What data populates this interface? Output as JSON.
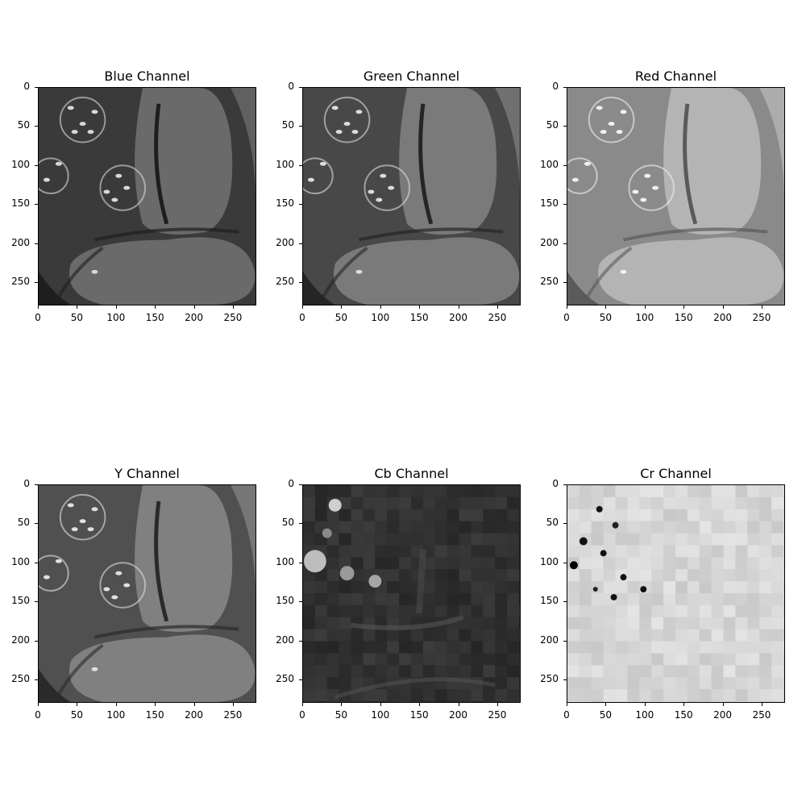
{
  "panels": [
    {
      "title": "Blue Channel",
      "image": "grayscale endoscopic image, dark",
      "palette": {
        "bg": "#3a3a3a",
        "tissue": "#6a6a6a",
        "fold": "#1e1e1e",
        "highlight": "#d8d8d8"
      }
    },
    {
      "title": "Green Channel",
      "image": "grayscale endoscopic image, medium",
      "palette": {
        "bg": "#484848",
        "tissue": "#7a7a7a",
        "fold": "#252525",
        "highlight": "#dddddd"
      }
    },
    {
      "title": "Red Channel",
      "image": "grayscale endoscopic image, bright",
      "palette": {
        "bg": "#8a8a8a",
        "tissue": "#b4b4b4",
        "fold": "#5a5a5a",
        "highlight": "#f0f0f0"
      }
    },
    {
      "title": "Y Channel",
      "image": "grayscale endoscopic image, medium",
      "palette": {
        "bg": "#505050",
        "tissue": "#808080",
        "fold": "#2a2a2a",
        "highlight": "#e0e0e0"
      }
    },
    {
      "title": "Cb Channel",
      "image": "dark blocky chroma image",
      "palette": {
        "bg": "#2e2e2e",
        "tissue": "#3e3e3e",
        "fold": "#1a1a1a",
        "highlight": "#9a9a9a"
      }
    },
    {
      "title": "Cr Channel",
      "image": "light blocky chroma image",
      "palette": {
        "bg": "#cfcfcf",
        "tissue": "#dcdcdc",
        "fold": "#b0b0b0",
        "highlight": "#1a1a1a"
      }
    }
  ],
  "axis": {
    "x_ticks": [
      "0",
      "50",
      "100",
      "150",
      "200",
      "250"
    ],
    "y_ticks": [
      "0",
      "50",
      "100",
      "150",
      "200",
      "250"
    ],
    "range": [
      0,
      280
    ]
  }
}
